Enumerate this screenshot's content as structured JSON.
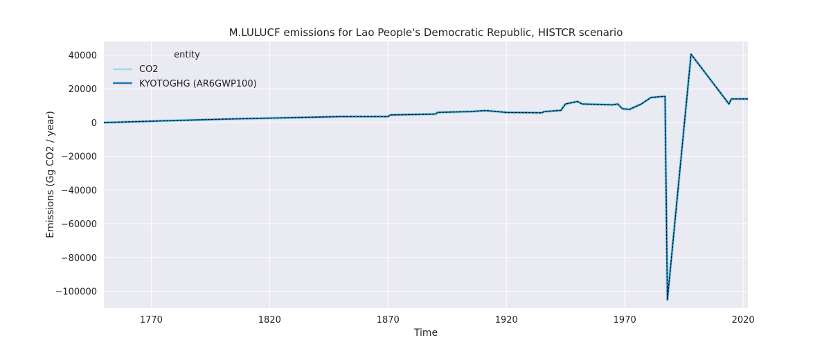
{
  "chart_data": {
    "type": "line",
    "title": "M.LULUCF emissions for Lao People's Democratic Republic, HISTCR scenario",
    "xlabel": "Time",
    "ylabel": "Emissions (Gg CO2 / year)",
    "xlim": [
      1750,
      2022
    ],
    "ylim": [
      -110000,
      48000
    ],
    "x_ticks": [
      1770,
      1820,
      1870,
      1920,
      1970,
      2020
    ],
    "y_ticks": [
      -100000,
      -80000,
      -60000,
      -40000,
      -20000,
      0,
      20000,
      40000
    ],
    "x_tick_labels": [
      "1770",
      "1820",
      "1870",
      "1920",
      "1970",
      "2020"
    ],
    "y_tick_labels": [
      "−100000",
      "−80000",
      "−60000",
      "−40000",
      "−20000",
      "0",
      "20000",
      "40000"
    ],
    "grid": true,
    "legend": {
      "title": "entity",
      "position": "top-left"
    },
    "series": [
      {
        "name": "CO2",
        "color": "#9fdbe8",
        "style": "solid",
        "x": [
          1750,
          1800,
          1850,
          1870,
          1871,
          1890,
          1891,
          1905,
          1910,
          1912,
          1920,
          1935,
          1936,
          1943,
          1945,
          1950,
          1952,
          1965,
          1967,
          1969,
          1972,
          1977,
          1981,
          1984,
          1987,
          1988,
          1998,
          2014,
          2015,
          2021,
          2022
        ],
        "y": [
          0,
          2000,
          3500,
          3500,
          4500,
          5000,
          6000,
          6500,
          7000,
          7000,
          6000,
          5800,
          6500,
          7200,
          11000,
          12500,
          11000,
          10500,
          11000,
          8200,
          7800,
          11000,
          14800,
          15200,
          15500,
          -105000,
          40500,
          11000,
          14000,
          14000,
          14000
        ]
      },
      {
        "name": "KYOTOGHG (AR6GWP100)",
        "color": "#1f77b4",
        "style": "solid",
        "x": [
          1750,
          1800,
          1850,
          1870,
          1871,
          1890,
          1891,
          1905,
          1910,
          1912,
          1920,
          1935,
          1936,
          1943,
          1945,
          1950,
          1952,
          1965,
          1967,
          1969,
          1972,
          1977,
          1981,
          1984,
          1987,
          1988,
          1998,
          2014,
          2015,
          2021,
          2022
        ],
        "y": [
          0,
          2000,
          3500,
          3500,
          4500,
          5000,
          6000,
          6500,
          7000,
          7000,
          6000,
          5800,
          6500,
          7200,
          11000,
          12500,
          11000,
          10500,
          11000,
          8200,
          7800,
          11000,
          14800,
          15200,
          15500,
          -105000,
          40500,
          11000,
          14000,
          14000,
          14000
        ]
      }
    ],
    "overlay_line": {
      "color": "#000000",
      "style": "dashed"
    },
    "colors": {
      "plot_background": "#eaeaf2",
      "grid": "#ffffff"
    }
  }
}
